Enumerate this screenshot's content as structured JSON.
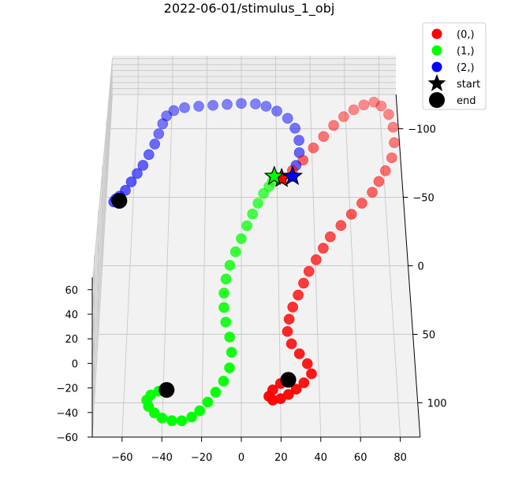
{
  "chart_data": {
    "type": "scatter",
    "projection": "3d",
    "title": "2022-06-01/stimulus_1_obj",
    "xlabel": "",
    "ylabel": "",
    "zlabel": "",
    "x_ticks": [
      -60,
      -40,
      -20,
      0,
      20,
      40,
      60,
      80
    ],
    "y_ticks": [
      -100,
      -50,
      0,
      50,
      100
    ],
    "z_ticks": [
      -60,
      -40,
      -20,
      0,
      20,
      40,
      60
    ],
    "grid": true,
    "legend_position": "upper-right",
    "series": [
      {
        "name": "(0,)",
        "color": "#ff0000",
        "points": [
          [
            22,
            -18,
            30
          ],
          [
            28,
            -25,
            31
          ],
          [
            34,
            -35,
            31
          ],
          [
            40,
            -48,
            29
          ],
          [
            46,
            -60,
            27
          ],
          [
            52,
            -72,
            24
          ],
          [
            58,
            -82,
            20
          ],
          [
            64,
            -90,
            16
          ],
          [
            70,
            -96,
            12
          ],
          [
            76,
            -100,
            8
          ],
          [
            80,
            -98,
            4
          ],
          [
            84,
            -92,
            0
          ],
          [
            86,
            -82,
            -3
          ],
          [
            86,
            -70,
            -6
          ],
          [
            84,
            -58,
            -8
          ],
          [
            80,
            -48,
            -10
          ],
          [
            76,
            -40,
            -12
          ],
          [
            72,
            -32,
            -14
          ],
          [
            66,
            -24,
            -16
          ],
          [
            60,
            -16,
            -18
          ],
          [
            54,
            -8,
            -20
          ],
          [
            48,
            0,
            -22
          ],
          [
            44,
            8,
            -24
          ],
          [
            40,
            16,
            -26
          ],
          [
            36,
            24,
            -28
          ],
          [
            33,
            32,
            -30
          ],
          [
            30,
            40,
            -32
          ],
          [
            27,
            48,
            -34
          ],
          [
            25,
            56,
            -36
          ],
          [
            24,
            64,
            -38
          ],
          [
            26,
            72,
            -40
          ],
          [
            30,
            78,
            -42
          ],
          [
            34,
            84,
            -44
          ],
          [
            36,
            90,
            -46
          ],
          [
            32,
            96,
            -47
          ],
          [
            28,
            100,
            -48
          ],
          [
            24,
            104,
            -48
          ],
          [
            20,
            108,
            -47
          ],
          [
            16,
            110,
            -46
          ],
          [
            14,
            108,
            -45
          ],
          [
            16,
            104,
            -44
          ],
          [
            20,
            100,
            -43
          ],
          [
            24,
            98,
            -42
          ]
        ],
        "start": [
          22,
          -18,
          30
        ],
        "end": [
          24,
          98,
          -42
        ]
      },
      {
        "name": "(1,)",
        "color": "#00ff00",
        "points": [
          [
            18,
            -20,
            30
          ],
          [
            17,
            -14,
            32
          ],
          [
            15,
            -8,
            33
          ],
          [
            12,
            -2,
            32
          ],
          [
            9,
            6,
            30
          ],
          [
            6,
            14,
            27
          ],
          [
            3,
            22,
            23
          ],
          [
            0,
            30,
            18
          ],
          [
            -3,
            38,
            13
          ],
          [
            -6,
            46,
            8
          ],
          [
            -8,
            54,
            3
          ],
          [
            -9,
            62,
            -2
          ],
          [
            -9,
            70,
            -7
          ],
          [
            -8,
            78,
            -12
          ],
          [
            -6,
            86,
            -17
          ],
          [
            -5,
            94,
            -22
          ],
          [
            -6,
            102,
            -27
          ],
          [
            -9,
            108,
            -32
          ],
          [
            -13,
            112,
            -37
          ],
          [
            -17,
            116,
            -41
          ],
          [
            -21,
            119,
            -45
          ],
          [
            -25,
            121,
            -48
          ],
          [
            -30,
            122,
            -50
          ],
          [
            -35,
            121,
            -51
          ],
          [
            -40,
            119,
            -51
          ],
          [
            -44,
            116,
            -50
          ],
          [
            -47,
            113,
            -48
          ],
          [
            -48,
            110,
            -46
          ],
          [
            -46,
            107,
            -45
          ],
          [
            -42,
            105,
            -44
          ],
          [
            -38,
            104,
            -44
          ]
        ],
        "start": [
          18,
          -20,
          30
        ],
        "end": [
          -38,
          104,
          -44
        ]
      },
      {
        "name": "(2,)",
        "color": "#0000ff",
        "points": [
          [
            28,
            -20,
            30
          ],
          [
            30,
            -28,
            34
          ],
          [
            32,
            -38,
            38
          ],
          [
            32,
            -48,
            42
          ],
          [
            30,
            -58,
            46
          ],
          [
            26,
            -66,
            50
          ],
          [
            20,
            -72,
            53
          ],
          [
            14,
            -76,
            55
          ],
          [
            8,
            -78,
            56
          ],
          [
            0,
            -78,
            57
          ],
          [
            -8,
            -77,
            57
          ],
          [
            -16,
            -76,
            57
          ],
          [
            -24,
            -75,
            57
          ],
          [
            -32,
            -74,
            56
          ],
          [
            -38,
            -72,
            54
          ],
          [
            -42,
            -68,
            51
          ],
          [
            -44,
            -62,
            47
          ],
          [
            -46,
            -54,
            43
          ],
          [
            -48,
            -46,
            39
          ],
          [
            -51,
            -38,
            35
          ],
          [
            -54,
            -30,
            31
          ],
          [
            -57,
            -24,
            28
          ],
          [
            -60,
            -18,
            25
          ],
          [
            -63,
            -12,
            22
          ],
          [
            -66,
            -8,
            20
          ],
          [
            -68,
            -6,
            19
          ],
          [
            -69,
            -4,
            18
          ],
          [
            -66,
            -5,
            18
          ]
        ],
        "start": [
          28,
          -20,
          30
        ],
        "end": [
          -66,
          -5,
          18
        ]
      }
    ],
    "legend": {
      "start_label": "start",
      "end_label": "end"
    }
  }
}
